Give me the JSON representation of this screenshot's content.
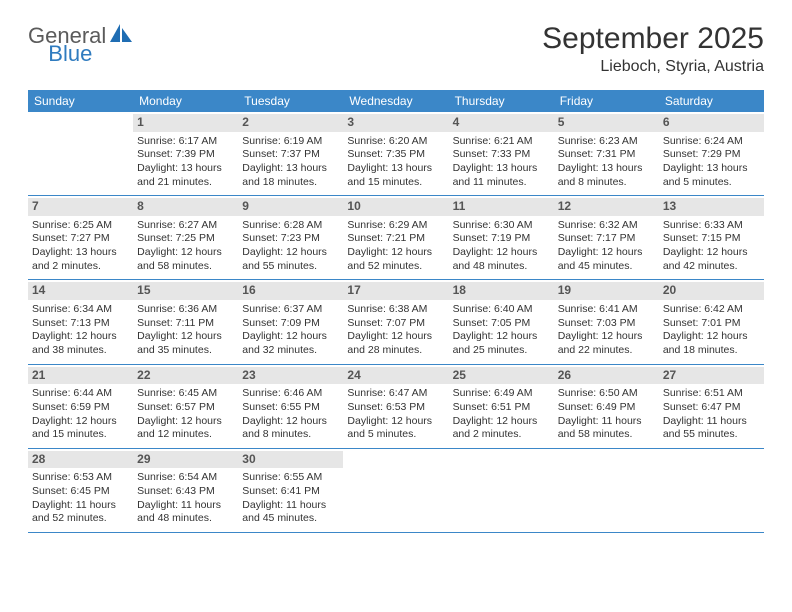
{
  "logo": {
    "word1": "General",
    "word2": "Blue"
  },
  "title": "September 2025",
  "location": "Lieboch, Styria, Austria",
  "colors": {
    "header_bar": "#3b87c8",
    "daynum_bg": "#e6e6e6",
    "logo_gray": "#5b5b5b",
    "logo_blue": "#2f7bbf"
  },
  "days_of_week": [
    "Sunday",
    "Monday",
    "Tuesday",
    "Wednesday",
    "Thursday",
    "Friday",
    "Saturday"
  ],
  "weeks": [
    [
      {
        "n": "",
        "empty": true
      },
      {
        "n": "1",
        "sr": "Sunrise: 6:17 AM",
        "ss": "Sunset: 7:39 PM",
        "d1": "Daylight: 13 hours",
        "d2": "and 21 minutes."
      },
      {
        "n": "2",
        "sr": "Sunrise: 6:19 AM",
        "ss": "Sunset: 7:37 PM",
        "d1": "Daylight: 13 hours",
        "d2": "and 18 minutes."
      },
      {
        "n": "3",
        "sr": "Sunrise: 6:20 AM",
        "ss": "Sunset: 7:35 PM",
        "d1": "Daylight: 13 hours",
        "d2": "and 15 minutes."
      },
      {
        "n": "4",
        "sr": "Sunrise: 6:21 AM",
        "ss": "Sunset: 7:33 PM",
        "d1": "Daylight: 13 hours",
        "d2": "and 11 minutes."
      },
      {
        "n": "5",
        "sr": "Sunrise: 6:23 AM",
        "ss": "Sunset: 7:31 PM",
        "d1": "Daylight: 13 hours",
        "d2": "and 8 minutes."
      },
      {
        "n": "6",
        "sr": "Sunrise: 6:24 AM",
        "ss": "Sunset: 7:29 PM",
        "d1": "Daylight: 13 hours",
        "d2": "and 5 minutes."
      }
    ],
    [
      {
        "n": "7",
        "sr": "Sunrise: 6:25 AM",
        "ss": "Sunset: 7:27 PM",
        "d1": "Daylight: 13 hours",
        "d2": "and 2 minutes."
      },
      {
        "n": "8",
        "sr": "Sunrise: 6:27 AM",
        "ss": "Sunset: 7:25 PM",
        "d1": "Daylight: 12 hours",
        "d2": "and 58 minutes."
      },
      {
        "n": "9",
        "sr": "Sunrise: 6:28 AM",
        "ss": "Sunset: 7:23 PM",
        "d1": "Daylight: 12 hours",
        "d2": "and 55 minutes."
      },
      {
        "n": "10",
        "sr": "Sunrise: 6:29 AM",
        "ss": "Sunset: 7:21 PM",
        "d1": "Daylight: 12 hours",
        "d2": "and 52 minutes."
      },
      {
        "n": "11",
        "sr": "Sunrise: 6:30 AM",
        "ss": "Sunset: 7:19 PM",
        "d1": "Daylight: 12 hours",
        "d2": "and 48 minutes."
      },
      {
        "n": "12",
        "sr": "Sunrise: 6:32 AM",
        "ss": "Sunset: 7:17 PM",
        "d1": "Daylight: 12 hours",
        "d2": "and 45 minutes."
      },
      {
        "n": "13",
        "sr": "Sunrise: 6:33 AM",
        "ss": "Sunset: 7:15 PM",
        "d1": "Daylight: 12 hours",
        "d2": "and 42 minutes."
      }
    ],
    [
      {
        "n": "14",
        "sr": "Sunrise: 6:34 AM",
        "ss": "Sunset: 7:13 PM",
        "d1": "Daylight: 12 hours",
        "d2": "and 38 minutes."
      },
      {
        "n": "15",
        "sr": "Sunrise: 6:36 AM",
        "ss": "Sunset: 7:11 PM",
        "d1": "Daylight: 12 hours",
        "d2": "and 35 minutes."
      },
      {
        "n": "16",
        "sr": "Sunrise: 6:37 AM",
        "ss": "Sunset: 7:09 PM",
        "d1": "Daylight: 12 hours",
        "d2": "and 32 minutes."
      },
      {
        "n": "17",
        "sr": "Sunrise: 6:38 AM",
        "ss": "Sunset: 7:07 PM",
        "d1": "Daylight: 12 hours",
        "d2": "and 28 minutes."
      },
      {
        "n": "18",
        "sr": "Sunrise: 6:40 AM",
        "ss": "Sunset: 7:05 PM",
        "d1": "Daylight: 12 hours",
        "d2": "and 25 minutes."
      },
      {
        "n": "19",
        "sr": "Sunrise: 6:41 AM",
        "ss": "Sunset: 7:03 PM",
        "d1": "Daylight: 12 hours",
        "d2": "and 22 minutes."
      },
      {
        "n": "20",
        "sr": "Sunrise: 6:42 AM",
        "ss": "Sunset: 7:01 PM",
        "d1": "Daylight: 12 hours",
        "d2": "and 18 minutes."
      }
    ],
    [
      {
        "n": "21",
        "sr": "Sunrise: 6:44 AM",
        "ss": "Sunset: 6:59 PM",
        "d1": "Daylight: 12 hours",
        "d2": "and 15 minutes."
      },
      {
        "n": "22",
        "sr": "Sunrise: 6:45 AM",
        "ss": "Sunset: 6:57 PM",
        "d1": "Daylight: 12 hours",
        "d2": "and 12 minutes."
      },
      {
        "n": "23",
        "sr": "Sunrise: 6:46 AM",
        "ss": "Sunset: 6:55 PM",
        "d1": "Daylight: 12 hours",
        "d2": "and 8 minutes."
      },
      {
        "n": "24",
        "sr": "Sunrise: 6:47 AM",
        "ss": "Sunset: 6:53 PM",
        "d1": "Daylight: 12 hours",
        "d2": "and 5 minutes."
      },
      {
        "n": "25",
        "sr": "Sunrise: 6:49 AM",
        "ss": "Sunset: 6:51 PM",
        "d1": "Daylight: 12 hours",
        "d2": "and 2 minutes."
      },
      {
        "n": "26",
        "sr": "Sunrise: 6:50 AM",
        "ss": "Sunset: 6:49 PM",
        "d1": "Daylight: 11 hours",
        "d2": "and 58 minutes."
      },
      {
        "n": "27",
        "sr": "Sunrise: 6:51 AM",
        "ss": "Sunset: 6:47 PM",
        "d1": "Daylight: 11 hours",
        "d2": "and 55 minutes."
      }
    ],
    [
      {
        "n": "28",
        "sr": "Sunrise: 6:53 AM",
        "ss": "Sunset: 6:45 PM",
        "d1": "Daylight: 11 hours",
        "d2": "and 52 minutes."
      },
      {
        "n": "29",
        "sr": "Sunrise: 6:54 AM",
        "ss": "Sunset: 6:43 PM",
        "d1": "Daylight: 11 hours",
        "d2": "and 48 minutes."
      },
      {
        "n": "30",
        "sr": "Sunrise: 6:55 AM",
        "ss": "Sunset: 6:41 PM",
        "d1": "Daylight: 11 hours",
        "d2": "and 45 minutes."
      },
      {
        "n": "",
        "empty": true
      },
      {
        "n": "",
        "empty": true
      },
      {
        "n": "",
        "empty": true
      },
      {
        "n": "",
        "empty": true
      }
    ]
  ]
}
